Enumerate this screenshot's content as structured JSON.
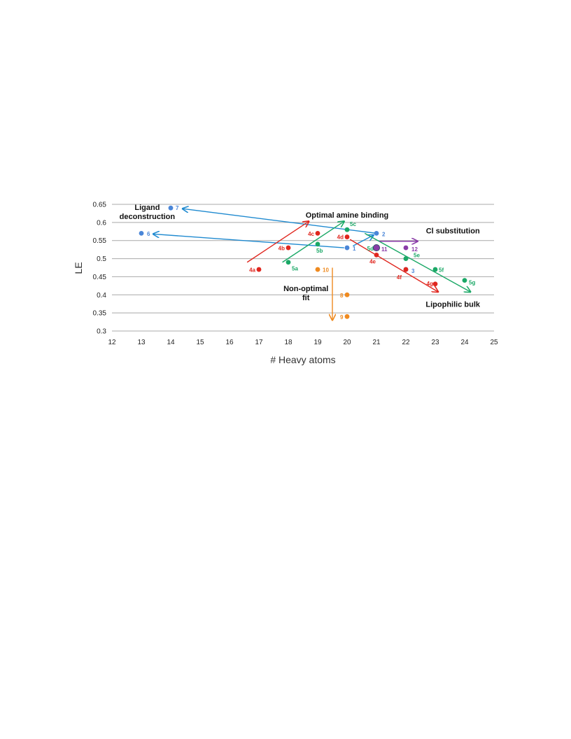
{
  "chart_data": {
    "type": "scatter",
    "title": "",
    "xlabel": "# Heavy atoms",
    "ylabel": "LE",
    "xlim": [
      12,
      25
    ],
    "ylim": [
      0.3,
      0.65
    ],
    "x_ticks": [
      "12",
      "13",
      "14",
      "15",
      "16",
      "17",
      "18",
      "19",
      "20",
      "21",
      "22",
      "23",
      "24",
      "25"
    ],
    "y_ticks": [
      "0.3",
      "0.35",
      "0.4",
      "0.45",
      "0.5",
      "0.55",
      "0.6",
      "0.65"
    ],
    "grid": "horizontal",
    "colors": {
      "blue": "#4a86d8",
      "red": "#e0261e",
      "green": "#1aa866",
      "orange": "#ef8a1f",
      "purple": "#8a3ca8",
      "arrow_blue": "#1f8ad0"
    },
    "points": [
      {
        "label": "1",
        "x": 20,
        "y": 0.53,
        "color": "blue"
      },
      {
        "label": "2",
        "x": 21,
        "y": 0.57,
        "color": "blue"
      },
      {
        "label": "3",
        "x": 22,
        "y": 0.47,
        "color": "blue"
      },
      {
        "label": "6",
        "x": 13,
        "y": 0.57,
        "color": "blue"
      },
      {
        "label": "7",
        "x": 14,
        "y": 0.64,
        "color": "blue"
      },
      {
        "label": "4a",
        "x": 17,
        "y": 0.47,
        "color": "red"
      },
      {
        "label": "4b",
        "x": 18,
        "y": 0.53,
        "color": "red"
      },
      {
        "label": "4c",
        "x": 19,
        "y": 0.57,
        "color": "red"
      },
      {
        "label": "4d",
        "x": 20,
        "y": 0.56,
        "color": "red"
      },
      {
        "label": "4e",
        "x": 21,
        "y": 0.51,
        "color": "red"
      },
      {
        "label": "4f",
        "x": 22,
        "y": 0.47,
        "color": "red"
      },
      {
        "label": "4g",
        "x": 23,
        "y": 0.43,
        "color": "red"
      },
      {
        "label": "5a",
        "x": 18,
        "y": 0.49,
        "color": "green"
      },
      {
        "label": "5b",
        "x": 19,
        "y": 0.54,
        "color": "green"
      },
      {
        "label": "5c",
        "x": 20,
        "y": 0.58,
        "color": "green"
      },
      {
        "label": "5d",
        "x": 21,
        "y": 0.53,
        "color": "green"
      },
      {
        "label": "5e",
        "x": 22,
        "y": 0.5,
        "color": "green"
      },
      {
        "label": "5f",
        "x": 23,
        "y": 0.47,
        "color": "green"
      },
      {
        "label": "5g",
        "x": 24,
        "y": 0.44,
        "color": "green"
      },
      {
        "label": "8",
        "x": 20,
        "y": 0.4,
        "color": "orange"
      },
      {
        "label": "9",
        "x": 20,
        "y": 0.34,
        "color": "orange"
      },
      {
        "label": "10",
        "x": 19,
        "y": 0.47,
        "color": "orange"
      },
      {
        "label": "11",
        "x": 21,
        "y": 0.53,
        "color": "purple"
      },
      {
        "label": "12",
        "x": 22,
        "y": 0.53,
        "color": "purple"
      }
    ],
    "arrows": [
      {
        "name": "arrow-7-from-2",
        "from": [
          21,
          0.57
        ],
        "to": [
          14.4,
          0.638
        ],
        "color": "arrow_blue"
      },
      {
        "name": "arrow-6-from-1",
        "from": [
          19.9,
          0.53
        ],
        "to": [
          13.4,
          0.568
        ],
        "color": "arrow_blue"
      },
      {
        "name": "arrow-1-to-2",
        "from": [
          20.2,
          0.535
        ],
        "to": [
          20.9,
          0.565
        ],
        "color": "arrow_blue"
      },
      {
        "name": "arrow-red-up",
        "from": [
          16.6,
          0.49
        ],
        "to": [
          18.7,
          0.603
        ],
        "color": "red"
      },
      {
        "name": "arrow-green-up",
        "from": [
          17.8,
          0.49
        ],
        "to": [
          19.9,
          0.603
        ],
        "color": "green"
      },
      {
        "name": "arrow-red-down",
        "from": [
          20.1,
          0.553
        ],
        "to": [
          23.1,
          0.408
        ],
        "color": "red"
      },
      {
        "name": "arrow-green-down",
        "from": [
          20.6,
          0.57
        ],
        "to": [
          24.2,
          0.408
        ],
        "color": "green"
      },
      {
        "name": "arrow-purple",
        "from": [
          21.1,
          0.548
        ],
        "to": [
          22.4,
          0.548
        ],
        "color": "purple"
      },
      {
        "name": "arrow-orange",
        "from": [
          19.5,
          0.475
        ],
        "to": [
          19.5,
          0.33
        ],
        "color": "orange"
      }
    ],
    "annotations": [
      {
        "name": "annotation-ligand",
        "lines": [
          "Ligand",
          "deconstruction"
        ],
        "x": 13.2,
        "y": 0.635,
        "anchor": "middle"
      },
      {
        "name": "annotation-optimal-amine",
        "lines": [
          "Optimal amine binding"
        ],
        "x": 20,
        "y": 0.613,
        "anchor": "middle"
      },
      {
        "name": "annotation-cl-substitution",
        "lines": [
          "Cl substitution"
        ],
        "x": 23.6,
        "y": 0.57,
        "anchor": "middle"
      },
      {
        "name": "annotation-non-optimal",
        "lines": [
          "Non-optimal",
          "fit"
        ],
        "x": 18.6,
        "y": 0.41,
        "anchor": "middle"
      },
      {
        "name": "annotation-lipophilic",
        "lines": [
          "Lipophilic bulk"
        ],
        "x": 23.6,
        "y": 0.367,
        "anchor": "middle"
      }
    ]
  }
}
